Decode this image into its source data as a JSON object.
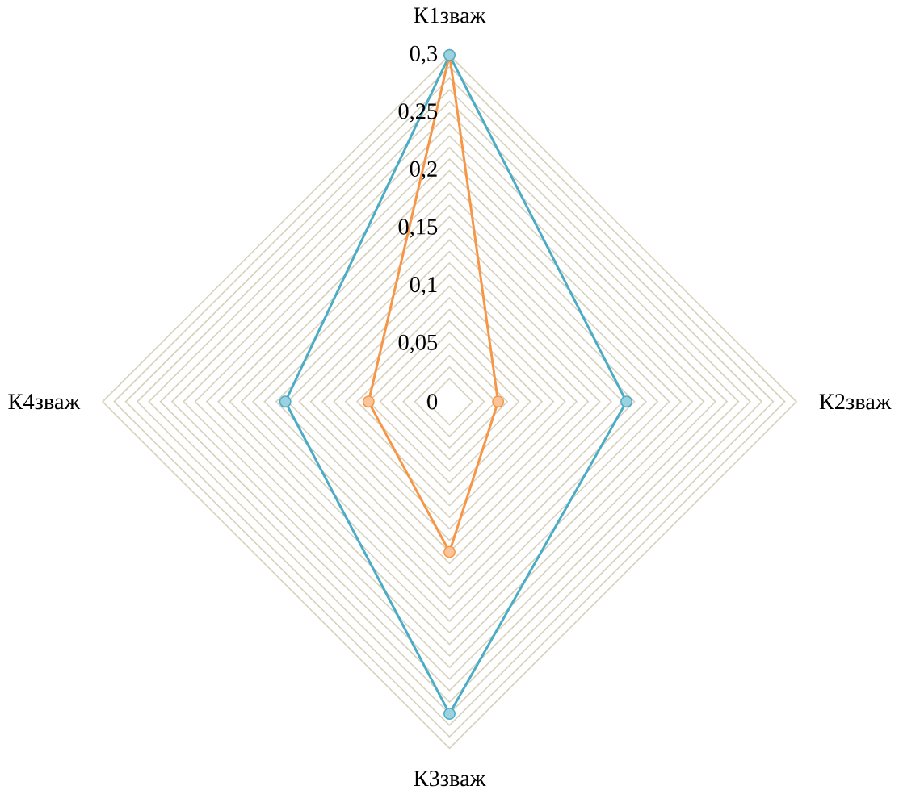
{
  "chart_data": {
    "type": "radar",
    "categories": [
      "К1зваж",
      "К2зваж",
      "К3зваж",
      "К4зваж"
    ],
    "series": [
      {
        "color": "#f79646",
        "values": [
          0.3,
          0.042,
          0.13,
          0.07
        ]
      },
      {
        "color": "#4bacc6",
        "values": [
          0.3,
          0.153,
          0.27,
          0.142
        ]
      }
    ],
    "ylim": [
      0,
      0.3
    ],
    "yticks": [
      {
        "value": 0,
        "label": "0"
      },
      {
        "value": 0.05,
        "label": "0,05"
      },
      {
        "value": 0.1,
        "label": "0,1"
      },
      {
        "value": 0.15,
        "label": "0,15"
      },
      {
        "value": 0.2,
        "label": "0,2"
      },
      {
        "value": 0.25,
        "label": "0,25"
      },
      {
        "value": 0.3,
        "label": "0,3"
      }
    ],
    "grid": true,
    "marker": "circle"
  }
}
